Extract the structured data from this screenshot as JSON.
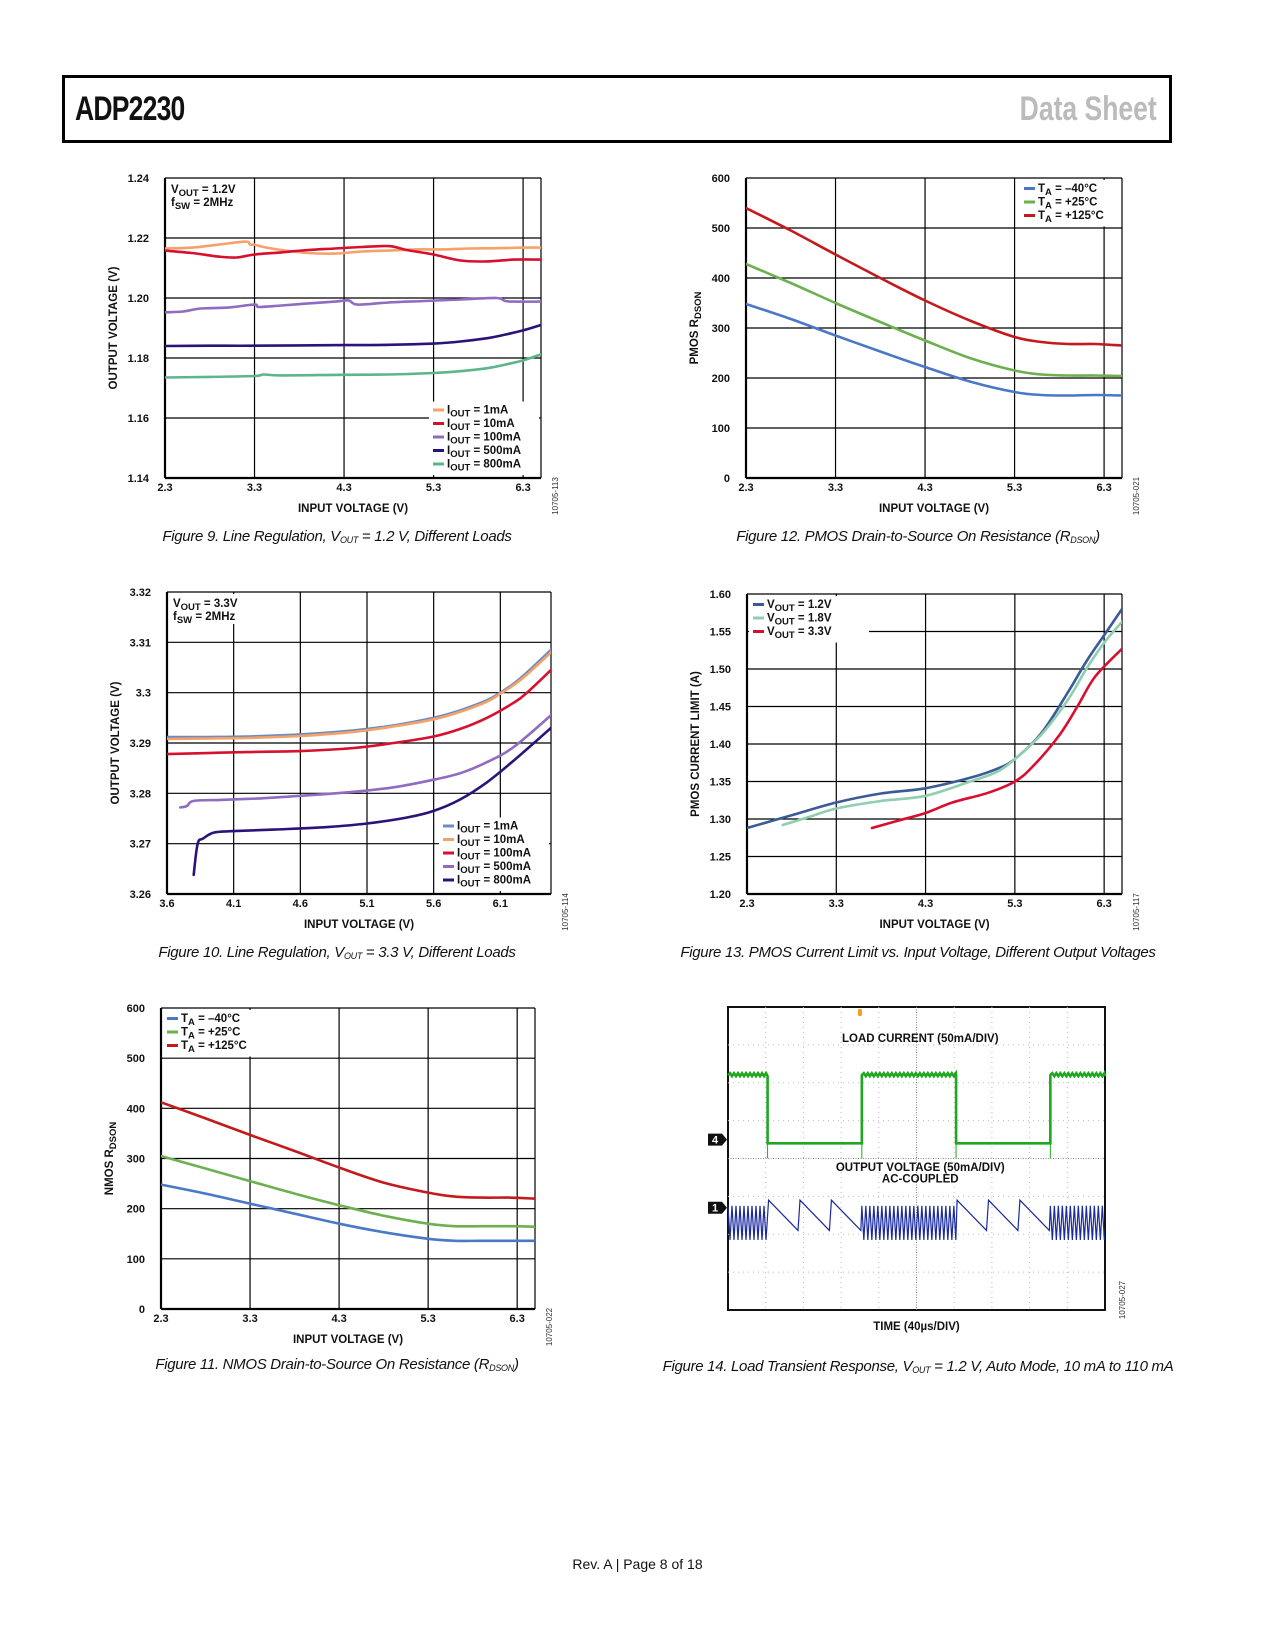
{
  "header": {
    "part_number": "ADP2230",
    "doc_type": "Data Sheet"
  },
  "footer": {
    "text": "Rev. A | Page 8 of 18"
  },
  "chart_data": [
    {
      "id": "fig9",
      "type": "line",
      "caption": {
        "pre": "Figure 9. Line Regulation, V",
        "sub": "OUT",
        "post": " = 1.2 V, Different Loads"
      },
      "figure_id": "10705-113",
      "xlabel": "INPUT VOLTAGE (V)",
      "ylabel": "OUTPUT VOLTAGE (V)",
      "xlim": [
        2.3,
        6.5
      ],
      "ylim": [
        1.14,
        1.24
      ],
      "xticks": [
        2.3,
        3.3,
        4.3,
        5.3,
        6.3
      ],
      "xtick_labels": [
        "2.3",
        "3.3",
        "4.3",
        "5.3",
        "6.3"
      ],
      "yticks": [
        1.14,
        1.16,
        1.18,
        1.2,
        1.22,
        1.24
      ],
      "ytick_labels": [
        "1.14",
        "1.16",
        "1.18",
        "1.20",
        "1.22",
        "1.24"
      ],
      "grid": true,
      "annotation": {
        "line1_pre": "V",
        "line1_sub": "OUT",
        "line1_post": " = 1.2V",
        "line2_pre": "f",
        "line2_sub": "SW",
        "line2_post": " = 2MHz"
      },
      "legend_position": "bottom-right",
      "series": [
        {
          "name": "IOUT = 1mA",
          "label_sub": "OUT",
          "label_post": " = 1mA",
          "color": "#f5a26a",
          "x": [
            2.3,
            2.6,
            2.9,
            3.2,
            3.25,
            3.3,
            3.4,
            3.6,
            3.9,
            4.2,
            4.5,
            4.8,
            5.1,
            5.4,
            5.7,
            6.0,
            6.3,
            6.5
          ],
          "y": [
            1.2165,
            1.2168,
            1.2178,
            1.2188,
            1.2178,
            1.2178,
            1.217,
            1.216,
            1.215,
            1.2148,
            1.2155,
            1.2158,
            1.2162,
            1.2162,
            1.2165,
            1.2166,
            1.2168,
            1.2168
          ]
        },
        {
          "name": "IOUT = 10mA",
          "label_sub": "OUT",
          "label_post": " = 10mA",
          "color": "#d7102f",
          "x": [
            2.3,
            2.6,
            2.9,
            3.1,
            3.3,
            3.6,
            3.9,
            4.2,
            4.5,
            4.8,
            5.0,
            5.3,
            5.6,
            5.9,
            6.2,
            6.5
          ],
          "y": [
            1.2158,
            1.215,
            1.2138,
            1.2135,
            1.2145,
            1.2152,
            1.216,
            1.2165,
            1.217,
            1.2173,
            1.216,
            1.2145,
            1.2125,
            1.2122,
            1.2128,
            1.2128
          ]
        },
        {
          "name": "IOUT = 100mA",
          "label_sub": "OUT",
          "label_post": " = 100mA",
          "color": "#8f6cbf",
          "x": [
            2.3,
            2.5,
            2.7,
            3.0,
            3.3,
            3.35,
            3.6,
            3.9,
            4.2,
            4.35,
            4.45,
            4.8,
            5.2,
            5.6,
            6.0,
            6.1,
            6.2,
            6.5
          ],
          "y": [
            1.1952,
            1.1955,
            1.1965,
            1.1968,
            1.1978,
            1.197,
            1.1975,
            1.1982,
            1.1988,
            1.1992,
            1.1978,
            1.1985,
            1.199,
            1.1995,
            1.2,
            1.199,
            1.1988,
            1.1988
          ]
        },
        {
          "name": "IOUT = 500mA",
          "label_sub": "OUT",
          "label_post": " = 500mA",
          "color": "#2b137a",
          "x": [
            2.3,
            2.8,
            3.3,
            3.8,
            4.3,
            4.8,
            5.3,
            5.6,
            5.9,
            6.1,
            6.3,
            6.5
          ],
          "y": [
            1.184,
            1.1841,
            1.1841,
            1.1842,
            1.1843,
            1.1844,
            1.1848,
            1.1855,
            1.1866,
            1.1878,
            1.1892,
            1.191
          ]
        },
        {
          "name": "IOUT = 800mA",
          "label_sub": "OUT",
          "label_post": " = 800mA",
          "color": "#5db58a",
          "x": [
            2.3,
            2.8,
            3.3,
            3.4,
            3.6,
            4.3,
            4.8,
            5.3,
            5.6,
            5.9,
            6.1,
            6.3,
            6.5
          ],
          "y": [
            1.1735,
            1.1737,
            1.174,
            1.1745,
            1.1742,
            1.1744,
            1.1745,
            1.175,
            1.1756,
            1.1766,
            1.1778,
            1.1792,
            1.1812
          ]
        }
      ]
    },
    {
      "id": "fig12",
      "type": "line",
      "caption": {
        "pre": "Figure 12. PMOS Drain-to-Source On Resistance (R",
        "sub": "DSON",
        "post": ")"
      },
      "figure_id": "10705-021",
      "xlabel": "INPUT VOLTAGE (V)",
      "ylabel_pre": "PMOS R",
      "ylabel_sub": "DSON",
      "xlim": [
        2.3,
        6.5
      ],
      "ylim": [
        0,
        600
      ],
      "xticks": [
        2.3,
        3.3,
        4.3,
        5.3,
        6.3
      ],
      "xtick_labels": [
        "2.3",
        "3.3",
        "4.3",
        "5.3",
        "6.3"
      ],
      "yticks": [
        0,
        100,
        200,
        300,
        400,
        500,
        600
      ],
      "ytick_labels": [
        "0",
        "100",
        "200",
        "300",
        "400",
        "500",
        "600"
      ],
      "grid": true,
      "legend_position": "top-right",
      "series": [
        {
          "name": "TA = –40°C",
          "label_sub": "A",
          "label_post": " = –40°C",
          "color": "#4a78c7",
          "x": [
            2.3,
            2.8,
            3.3,
            3.8,
            4.3,
            4.8,
            5.3,
            5.6,
            5.9,
            6.2,
            6.5
          ],
          "y": [
            348,
            318,
            285,
            253,
            222,
            193,
            172,
            166,
            165,
            166,
            165
          ]
        },
        {
          "name": "TA = +25°C",
          "label_sub": "A",
          "label_post": " = +25°C",
          "color": "#6db04f",
          "x": [
            2.3,
            2.8,
            3.3,
            3.8,
            4.3,
            4.8,
            5.3,
            5.6,
            5.9,
            6.2,
            6.5
          ],
          "y": [
            428,
            390,
            350,
            312,
            275,
            240,
            215,
            207,
            205,
            205,
            204
          ]
        },
        {
          "name": "TA = +125°C",
          "label_sub": "A",
          "label_post": " = +125°C",
          "color": "#c31a1e",
          "x": [
            2.3,
            2.8,
            3.3,
            3.8,
            4.3,
            4.8,
            5.3,
            5.6,
            5.9,
            6.2,
            6.5
          ],
          "y": [
            540,
            495,
            447,
            400,
            355,
            315,
            282,
            272,
            268,
            268,
            265
          ]
        }
      ]
    },
    {
      "id": "fig10",
      "type": "line",
      "caption": {
        "pre": "Figure 10. Line Regulation, V",
        "sub": "OUT",
        "post": " = 3.3 V, Different Loads"
      },
      "figure_id": "10705-114",
      "xlabel": "INPUT VOLTAGE (V)",
      "ylabel": "OUTPUT VOLTAGE (V)",
      "xlim": [
        3.6,
        6.48
      ],
      "ylim": [
        3.26,
        3.32
      ],
      "xticks": [
        3.6,
        4.1,
        4.6,
        5.1,
        5.6,
        6.1
      ],
      "xtick_labels": [
        "3.6",
        "4.1",
        "4.6",
        "5.1",
        "5.6",
        "6.1"
      ],
      "yticks": [
        3.26,
        3.27,
        3.28,
        3.29,
        3.3,
        3.31,
        3.32
      ],
      "ytick_labels": [
        "3.26",
        "3.27",
        "3.28",
        "3.29",
        "3.3",
        "3.31",
        "3.32"
      ],
      "grid": true,
      "annotation": {
        "line1_pre": "V",
        "line1_sub": "OUT",
        "line1_post": " = 3.3V",
        "line2_pre": "f",
        "line2_sub": "SW",
        "line2_post": " = 2MHz"
      },
      "legend_position": "bottom-right",
      "series": [
        {
          "name": "IOUT = 1mA",
          "label_sub": "OUT",
          "label_post": " = 1mA",
          "color": "#6a8cc0",
          "x": [
            3.6,
            3.9,
            4.2,
            4.6,
            5.0,
            5.3,
            5.6,
            5.8,
            6.0,
            6.1,
            6.2,
            6.3,
            6.48
          ],
          "y": [
            3.2912,
            3.2912,
            3.2913,
            3.2917,
            3.2925,
            3.2935,
            3.295,
            3.2965,
            3.2985,
            3.3,
            3.3018,
            3.304,
            3.3085
          ]
        },
        {
          "name": "IOUT = 10mA",
          "label_sub": "OUT",
          "label_post": " = 10mA",
          "color": "#f5a26a",
          "x": [
            3.6,
            3.9,
            4.2,
            4.6,
            5.0,
            5.3,
            5.6,
            5.8,
            6.0,
            6.1,
            6.2,
            6.3,
            6.48
          ],
          "y": [
            3.2908,
            3.2909,
            3.291,
            3.2914,
            3.2922,
            3.2933,
            3.2947,
            3.2962,
            3.2982,
            3.2998,
            3.3015,
            3.3036,
            3.308
          ]
        },
        {
          "name": "IOUT = 100mA",
          "label_sub": "OUT",
          "label_post": " = 100mA",
          "color": "#d7102f",
          "x": [
            3.6,
            3.9,
            4.2,
            4.6,
            5.0,
            5.3,
            5.6,
            5.8,
            6.0,
            6.2,
            6.3,
            6.48
          ],
          "y": [
            3.2878,
            3.288,
            3.2882,
            3.2884,
            3.289,
            3.29,
            3.2913,
            3.2928,
            3.295,
            3.298,
            3.3,
            3.3045
          ]
        },
        {
          "name": "IOUT = 500mA",
          "label_sub": "OUT",
          "label_post": " = 500mA",
          "color": "#8f6cbf",
          "x": [
            3.7,
            3.75,
            3.8,
            4.0,
            4.3,
            4.6,
            5.0,
            5.3,
            5.6,
            5.8,
            6.0,
            6.2,
            6.48
          ],
          "y": [
            3.2772,
            3.2775,
            3.2785,
            3.2787,
            3.279,
            3.2795,
            3.2803,
            3.2812,
            3.2827,
            3.284,
            3.2862,
            3.2892,
            3.2955
          ]
        },
        {
          "name": "IOUT = 800mA",
          "label_sub": "OUT",
          "label_post": " = 800mA",
          "color": "#2b137a",
          "x": [
            3.8,
            3.83,
            3.87,
            3.95,
            4.1,
            4.4,
            4.8,
            5.1,
            5.4,
            5.6,
            5.8,
            6.0,
            6.2,
            6.48
          ],
          "y": [
            3.2638,
            3.27,
            3.271,
            3.2722,
            3.2725,
            3.2728,
            3.2733,
            3.274,
            3.2752,
            3.2765,
            3.2788,
            3.2822,
            3.2865,
            3.293
          ]
        }
      ]
    },
    {
      "id": "fig13",
      "type": "line",
      "caption": {
        "pre": "Figure 13. PMOS Current Limit vs. Input Voltage, Different Output Voltages",
        "sub": "",
        "post": ""
      },
      "figure_id": "10705-117",
      "xlabel": "INPUT VOLTAGE (V)",
      "ylabel": "PMOS CURRENT LIMIT (A)",
      "xlim": [
        2.3,
        6.5
      ],
      "ylim": [
        1.2,
        1.6
      ],
      "xticks": [
        2.3,
        3.3,
        4.3,
        5.3,
        6.3
      ],
      "xtick_labels": [
        "2.3",
        "3.3",
        "4.3",
        "5.3",
        "6.3"
      ],
      "yticks": [
        1.2,
        1.25,
        1.3,
        1.35,
        1.4,
        1.45,
        1.5,
        1.55,
        1.6
      ],
      "ytick_labels": [
        "1.20",
        "1.25",
        "1.30",
        "1.35",
        "1.40",
        "1.45",
        "1.50",
        "1.55",
        "1.60"
      ],
      "grid": true,
      "legend_position": "top-left",
      "series": [
        {
          "name": "VOUT = 1.2V",
          "label_sub": "OUT",
          "label_post": " = 1.2V",
          "color": "#3b5b98",
          "x": [
            2.3,
            2.8,
            3.3,
            3.8,
            4.3,
            4.8,
            5.1,
            5.3,
            5.6,
            5.9,
            6.1,
            6.3,
            6.5
          ],
          "y": [
            1.288,
            1.305,
            1.322,
            1.334,
            1.341,
            1.355,
            1.367,
            1.38,
            1.415,
            1.47,
            1.51,
            1.545,
            1.58
          ]
        },
        {
          "name": "VOUT = 1.8V",
          "label_sub": "OUT",
          "label_post": " = 1.8V",
          "color": "#8fcfb0",
          "x": [
            2.7,
            3.0,
            3.3,
            3.8,
            4.3,
            4.8,
            5.1,
            5.3,
            5.6,
            5.9,
            6.1,
            6.3,
            6.5
          ],
          "y": [
            1.292,
            1.303,
            1.314,
            1.324,
            1.331,
            1.35,
            1.363,
            1.38,
            1.413,
            1.46,
            1.5,
            1.535,
            1.563
          ]
        },
        {
          "name": "VOUT = 3.3V",
          "label_sub": "OUT",
          "label_post": " = 3.3V",
          "color": "#d7102f",
          "x": [
            3.7,
            4.0,
            4.3,
            4.6,
            5.0,
            5.3,
            5.5,
            5.8,
            6.0,
            6.2,
            6.5
          ],
          "y": [
            1.288,
            1.298,
            1.308,
            1.322,
            1.335,
            1.35,
            1.37,
            1.412,
            1.45,
            1.49,
            1.527
          ]
        }
      ]
    },
    {
      "id": "fig11",
      "type": "line",
      "caption": {
        "pre": "Figure 11. NMOS Drain-to-Source On Resistance (R",
        "sub": "DSON",
        "post": ")"
      },
      "figure_id": "10705-022",
      "xlabel": "INPUT VOLTAGE (V)",
      "ylabel_pre": "NMOS R",
      "ylabel_sub": "DSON",
      "xlim": [
        2.3,
        6.5
      ],
      "ylim": [
        0,
        600
      ],
      "xticks": [
        2.3,
        3.3,
        4.3,
        5.3,
        6.3
      ],
      "xtick_labels": [
        "2.3",
        "3.3",
        "4.3",
        "5.3",
        "6.3"
      ],
      "yticks": [
        0,
        100,
        200,
        300,
        400,
        500,
        600
      ],
      "ytick_labels": [
        "0",
        "100",
        "200",
        "300",
        "400",
        "500",
        "600"
      ],
      "grid": true,
      "legend_position": "top-left",
      "series": [
        {
          "name": "TA = –40°C",
          "label_sub": "A",
          "label_post": " = –40°C",
          "color": "#4a78c7",
          "x": [
            2.3,
            2.8,
            3.3,
            3.8,
            4.3,
            4.8,
            5.3,
            5.6,
            5.9,
            6.2,
            6.5
          ],
          "y": [
            248,
            230,
            210,
            190,
            170,
            153,
            140,
            136,
            136,
            136,
            136
          ]
        },
        {
          "name": "TA = +25°C",
          "label_sub": "A",
          "label_post": " = +25°C",
          "color": "#6db04f",
          "x": [
            2.3,
            2.8,
            3.3,
            3.8,
            4.3,
            4.8,
            5.3,
            5.6,
            5.9,
            6.2,
            6.5
          ],
          "y": [
            305,
            280,
            255,
            230,
            207,
            186,
            170,
            165,
            165,
            165,
            164
          ]
        },
        {
          "name": "TA = +125°C",
          "label_sub": "A",
          "label_post": " = +125°C",
          "color": "#c31a1e",
          "x": [
            2.3,
            2.8,
            3.3,
            3.8,
            4.3,
            4.8,
            5.3,
            5.6,
            5.9,
            6.2,
            6.5
          ],
          "y": [
            412,
            380,
            347,
            315,
            282,
            252,
            232,
            224,
            222,
            222,
            220
          ]
        }
      ]
    },
    {
      "id": "fig14",
      "type": "line",
      "subtype": "oscilloscope",
      "caption": {
        "pre": "Figure 14. Load Transient Response, V",
        "sub": "OUT",
        "post": " = 1.2 V, Auto Mode, 10 mA to 110 mA"
      },
      "figure_id": "10705-027",
      "xlabel": "TIME (40µs/DIV)",
      "divisions": {
        "x": 10,
        "y": 8
      },
      "channel_markers": [
        {
          "label": "4",
          "div_from_top": 3.5
        },
        {
          "label": "1",
          "div_from_top": 5.3
        }
      ],
      "trace_labels": {
        "load": "LOAD CURRENT (50mA/DIV)",
        "vout_line1": "OUTPUT VOLTAGE (50mA/DIV)",
        "vout_line2": "AC-COUPLED"
      },
      "series": [
        {
          "name": "Load current",
          "color": "#1fa81f",
          "high_div": 1.8,
          "low_div": 3.6,
          "transitions_div": [
            1.05,
            3.55,
            6.05,
            8.55
          ],
          "start_state": "high"
        },
        {
          "name": "Output voltage (AC-coupled)",
          "color": "#1b2a9c",
          "center_div": 5.7,
          "ripple_amp_div": 0.45,
          "sawtooth_top_div": 5.1,
          "sawtooth_bottom_div": 5.9
        }
      ]
    }
  ]
}
